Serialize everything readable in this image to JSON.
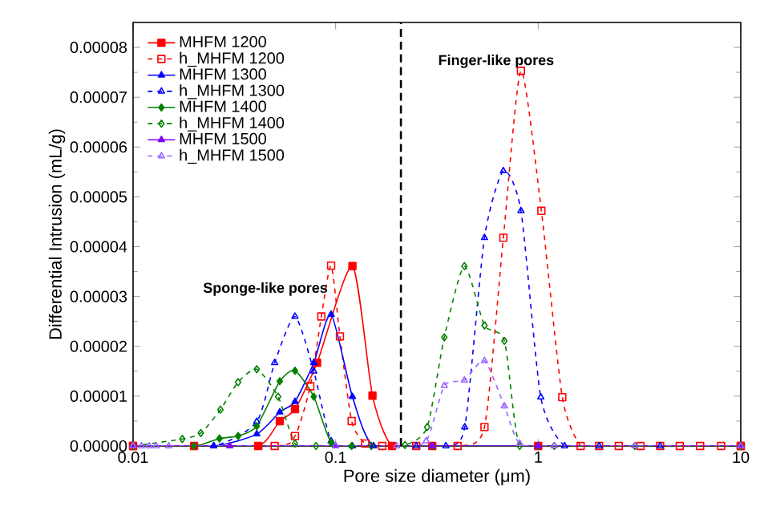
{
  "chart_data": {
    "type": "line",
    "xlabel": "Pore size diameter (μm)",
    "ylabel": "Differential Intrusion (mL/g)",
    "log": "x",
    "xlim": [
      0.01,
      10
    ],
    "xticks": [
      0.01,
      0.1,
      1,
      10
    ],
    "ylim": [
      0,
      8.5e-05
    ],
    "yticks": [
      {
        "value": 0,
        "label": "0.00000"
      },
      {
        "value": 1e-05,
        "label": "0.00001"
      },
      {
        "value": 2e-05,
        "label": "0.00002"
      },
      {
        "value": 3e-05,
        "label": "0.00003"
      },
      {
        "value": 4e-05,
        "label": "0.00004"
      },
      {
        "value": 5e-05,
        "label": "0.00005"
      },
      {
        "value": 6e-05,
        "label": "0.00006"
      },
      {
        "value": 7e-05,
        "label": "0.00007"
      },
      {
        "value": 8e-05,
        "label": "0.00008"
      }
    ],
    "legend": "top left",
    "grid": false,
    "ref_lines": [
      {
        "axis": "x",
        "value": 0.21,
        "color": "#000000",
        "line_style": "dashed"
      }
    ],
    "annotations": [
      "Sponge-like pores",
      "Finger-like pores"
    ],
    "series": [
      {
        "name": "MHFM 1200",
        "color": "#ff0000",
        "marker": "square",
        "line_style": "solid",
        "x": [
          0.01,
          0.02,
          0.0415,
          0.053,
          0.063,
          0.081,
          0.121,
          0.152,
          0.19,
          0.3,
          1,
          10
        ],
        "values": [
          0,
          0,
          0,
          5e-06,
          7.4e-06,
          1.67e-05,
          3.61e-05,
          1.01e-05,
          0,
          0,
          0,
          0
        ]
      },
      {
        "name": "h_MHFM 1200",
        "color": "#ff0000",
        "marker": "square",
        "line_style": "dashed",
        "x": [
          0.01,
          0.05,
          0.063,
          0.075,
          0.085,
          0.095,
          0.105,
          0.12,
          0.14,
          0.17,
          0.25,
          0.4,
          0.543,
          0.673,
          0.822,
          1.037,
          1.315,
          1.62,
          2,
          2.5,
          3.2,
          4,
          5,
          6.3,
          8,
          10
        ],
        "values": [
          0,
          0,
          2e-06,
          1.2e-05,
          2.6e-05,
          3.62e-05,
          2.2e-05,
          5e-06,
          5e-07,
          0,
          0,
          0,
          3.8e-06,
          4.18e-05,
          7.53e-05,
          4.72e-05,
          9.8e-06,
          0,
          0,
          0,
          0,
          0,
          0,
          0,
          0,
          0
        ]
      },
      {
        "name": "MHFM 1300",
        "color": "#0000ff",
        "marker": "triangle",
        "line_style": "solid",
        "x": [
          0.01,
          0.025,
          0.0408,
          0.053,
          0.063,
          0.078,
          0.095,
          0.121,
          0.154,
          0.3,
          1,
          10
        ],
        "values": [
          0,
          0,
          2.4e-06,
          6.8e-06,
          8.9e-06,
          1.67e-05,
          2.64e-05,
          9.9e-06,
          0,
          0,
          0,
          0
        ]
      },
      {
        "name": "h_MHFM 1300",
        "color": "#0000ff",
        "marker": "triangle",
        "line_style": "dashed",
        "x": [
          0.01,
          0.025,
          0.0408,
          0.05,
          0.063,
          0.078,
          0.095,
          0.121,
          0.25,
          0.35,
          0.434,
          0.543,
          0.673,
          0.822,
          1.03,
          1.35,
          2,
          4,
          10
        ],
        "values": [
          0,
          0,
          4.9e-06,
          1.67e-05,
          2.6e-05,
          1.5e-05,
          1e-06,
          0,
          0,
          0,
          3.8e-06,
          4.18e-05,
          5.52e-05,
          4.72e-05,
          9.8e-06,
          0,
          0,
          0,
          0
        ]
      },
      {
        "name": "MHFM 1400",
        "color": "#008000",
        "marker": "diamond",
        "line_style": "solid",
        "x": [
          0.01,
          0.02,
          0.0267,
          0.033,
          0.0408,
          0.053,
          0.063,
          0.078,
          0.095,
          0.12,
          0.3,
          1,
          10
        ],
        "values": [
          0,
          0,
          1.5e-06,
          2e-06,
          4e-06,
          1.3e-05,
          1.51e-05,
          9.9e-06,
          7e-07,
          0,
          0,
          0,
          0
        ]
      },
      {
        "name": "h_MHFM 1400",
        "color": "#008000",
        "marker": "diamond",
        "line_style": "dashed",
        "x": [
          0.01,
          0.0175,
          0.0216,
          0.027,
          0.033,
          0.0408,
          0.052,
          0.063,
          0.08,
          0.15,
          0.22,
          0.283,
          0.344,
          0.432,
          0.543,
          0.681,
          0.81,
          1.2,
          3,
          10
        ],
        "values": [
          0,
          1.4e-06,
          2.6e-06,
          7.3e-06,
          1.28e-05,
          1.54e-05,
          9.9e-06,
          5e-07,
          0,
          0,
          2e-07,
          3.8e-06,
          2.18e-05,
          3.61e-05,
          2.42e-05,
          2.11e-05,
          0,
          0,
          0,
          0
        ]
      },
      {
        "name": "MHFM 1500",
        "color": "#8000ff",
        "marker": "triangle",
        "line_style": "solid",
        "x": [
          0.01,
          0.03,
          0.1,
          0.3,
          1,
          10
        ],
        "values": [
          0,
          0,
          0,
          0,
          0,
          0
        ]
      },
      {
        "name": "h_MHFM 1500",
        "color": "#9966ff",
        "marker": "triangle",
        "line_style": "dashed",
        "x": [
          0.01,
          0.011,
          0.012,
          0.013,
          0.015,
          0.1,
          0.2,
          0.28,
          0.344,
          0.432,
          0.543,
          0.681,
          0.81,
          1.2,
          3,
          10
        ],
        "values": [
          0,
          0,
          0,
          0,
          0,
          0,
          0,
          1e-06,
          1.21e-05,
          1.32e-05,
          1.71e-05,
          8e-06,
          5e-07,
          0,
          0,
          0
        ]
      }
    ]
  }
}
